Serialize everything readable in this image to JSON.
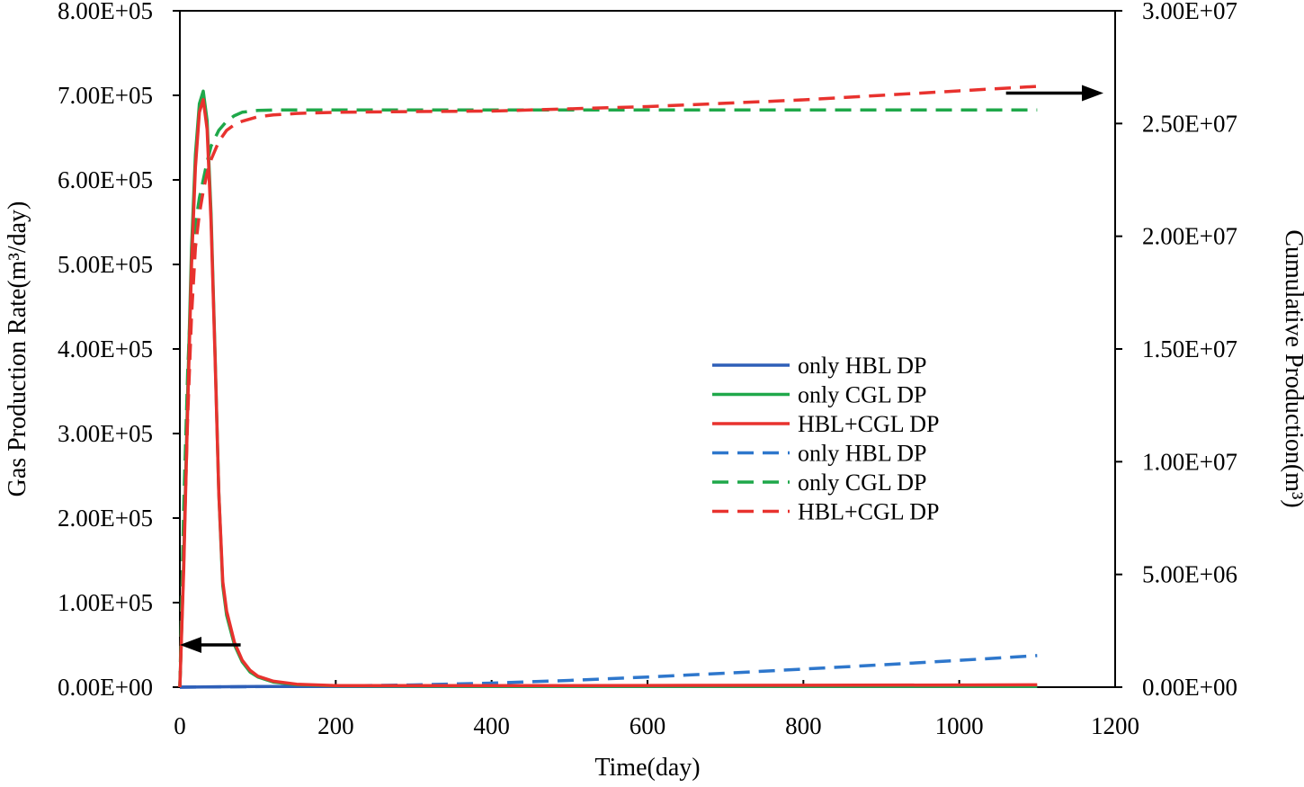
{
  "chart_data": {
    "type": "line",
    "title": "",
    "xlabel": "Time(day)",
    "ylabel_left": "Gas Production Rate(m³/day)",
    "ylabel_right": "Cumulative Production(m³)",
    "xlim": [
      0,
      1200
    ],
    "ylim_left": [
      0,
      800000
    ],
    "ylim_right": [
      0,
      30000000
    ],
    "x_ticks": [
      "0",
      "200",
      "400",
      "600",
      "800",
      "1000",
      "1200"
    ],
    "y_left_ticks": [
      "0.00E+00",
      "1.00E+05",
      "2.00E+05",
      "3.00E+05",
      "4.00E+05",
      "5.00E+05",
      "6.00E+05",
      "7.00E+05",
      "8.00E+05"
    ],
    "y_right_ticks": [
      "0.00E+00",
      "5.00E+06",
      "1.00E+07",
      "1.50E+07",
      "2.00E+07",
      "2.50E+07",
      "3.00E+07"
    ],
    "legend_position": "center-right",
    "annotations": [
      {
        "type": "arrow",
        "direction": "left",
        "axis": "left",
        "from": [
          78,
          50000
        ],
        "to": [
          0,
          50000
        ]
      },
      {
        "type": "arrow",
        "direction": "right",
        "axis": "right",
        "from": [
          1060,
          26350000
        ],
        "to": [
          1185,
          26350000
        ]
      }
    ],
    "series": [
      {
        "name": "only HBL DP",
        "axis": "left",
        "style": "solid",
        "color": "#2e5fb8",
        "x": [
          0,
          100,
          200,
          400,
          600,
          800,
          1000,
          1100
        ],
        "y": [
          0,
          800,
          900,
          900,
          900,
          900,
          900,
          900
        ]
      },
      {
        "name": "only CGL DP",
        "axis": "left",
        "style": "solid",
        "color": "#1fa84a",
        "x": [
          0,
          5,
          10,
          15,
          20,
          25,
          30,
          35,
          40,
          45,
          50,
          55,
          60,
          70,
          80,
          90,
          100,
          120,
          150,
          200,
          300,
          400,
          600,
          800,
          1000,
          1100
        ],
        "y": [
          0,
          150000,
          350000,
          520000,
          630000,
          690000,
          705000,
          670000,
          560000,
          400000,
          230000,
          120000,
          85000,
          50000,
          30000,
          18000,
          12000,
          6000,
          3000,
          1500,
          1200,
          1000,
          1000,
          1000,
          1000,
          1000
        ]
      },
      {
        "name": "HBL+CGL DP",
        "axis": "left",
        "style": "solid",
        "color": "#e8322e",
        "x": [
          0,
          5,
          10,
          15,
          20,
          25,
          30,
          35,
          40,
          45,
          50,
          55,
          60,
          70,
          80,
          90,
          100,
          120,
          150,
          200,
          300,
          400,
          600,
          800,
          1000,
          1100
        ],
        "y": [
          0,
          140000,
          330000,
          500000,
          615000,
          680000,
          695000,
          660000,
          550000,
          395000,
          230000,
          125000,
          90000,
          53000,
          32000,
          20000,
          13000,
          7000,
          3500,
          1800,
          1800,
          1800,
          2000,
          2200,
          2600,
          2800
        ]
      },
      {
        "name": "only HBL DP",
        "axis": "right",
        "style": "dashed",
        "color": "#2e77cc",
        "x": [
          0,
          200,
          300,
          400,
          500,
          600,
          700,
          800,
          900,
          1000,
          1100
        ],
        "y": [
          0,
          50000,
          100000,
          180000,
          300000,
          450000,
          620000,
          800000,
          990000,
          1190000,
          1400000
        ]
      },
      {
        "name": "only CGL DP",
        "axis": "right",
        "style": "dashed",
        "color": "#1fa84a",
        "x": [
          0,
          5,
          10,
          15,
          20,
          25,
          30,
          35,
          40,
          50,
          60,
          70,
          80,
          100,
          120,
          150,
          200,
          300,
          400,
          600,
          800,
          1000,
          1100
        ],
        "y": [
          0,
          8000000,
          14000000,
          18000000,
          20500000,
          21700000,
          22500000,
          23300000,
          24000000,
          24700000,
          25100000,
          25350000,
          25500000,
          25580000,
          25600000,
          25600000,
          25600000,
          25600000,
          25600000,
          25600000,
          25600000,
          25600000,
          25600000
        ]
      },
      {
        "name": "HBL+CGL DP",
        "axis": "right",
        "style": "dashed",
        "color": "#e8322e",
        "x": [
          0,
          5,
          10,
          15,
          20,
          25,
          30,
          35,
          40,
          50,
          60,
          70,
          80,
          100,
          120,
          150,
          200,
          300,
          400,
          500,
          600,
          700,
          800,
          900,
          1000,
          1100
        ],
        "y": [
          0,
          6000000,
          12000000,
          16500000,
          19500000,
          21000000,
          22000000,
          22800000,
          23400000,
          24200000,
          24700000,
          24950000,
          25100000,
          25300000,
          25380000,
          25450000,
          25500000,
          25530000,
          25550000,
          25650000,
          25750000,
          25900000,
          26050000,
          26250000,
          26450000,
          26650000
        ]
      }
    ]
  }
}
